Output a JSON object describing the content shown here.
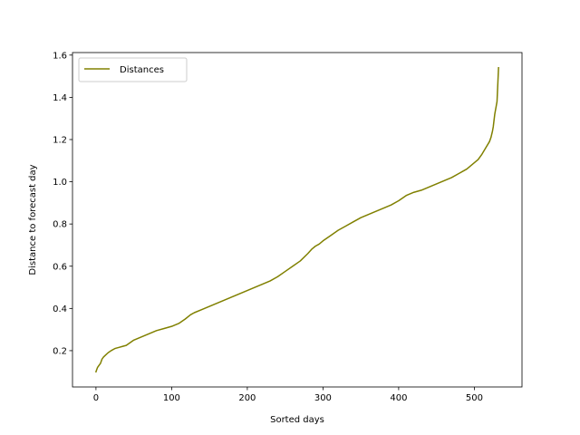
{
  "chart_data": {
    "type": "line",
    "xlabel": "Sorted days",
    "ylabel": "Distance to forecast day",
    "xlim": [
      -31,
      563
    ],
    "ylim": [
      0.028,
      1.612
    ],
    "xticks": [
      0,
      100,
      200,
      300,
      400,
      500
    ],
    "yticks": [
      0.2,
      0.4,
      0.6,
      0.8,
      1.0,
      1.2,
      1.4,
      1.6
    ],
    "ytick_labels": [
      "0.2",
      "0.4",
      "0.6",
      "0.8",
      "1.0",
      "1.2",
      "1.4",
      "1.6"
    ],
    "grid": false,
    "legend": {
      "position": "top-left",
      "entries": [
        "Distances"
      ]
    },
    "series": [
      {
        "name": "Distances",
        "color": "#808000",
        "x": [
          0,
          1,
          2,
          4,
          6,
          8,
          10,
          13,
          16,
          20,
          25,
          30,
          35,
          40,
          50,
          60,
          70,
          80,
          90,
          100,
          110,
          118,
          125,
          130,
          140,
          150,
          160,
          170,
          180,
          190,
          200,
          210,
          220,
          230,
          240,
          250,
          260,
          270,
          280,
          285,
          290,
          295,
          300,
          310,
          320,
          330,
          340,
          350,
          360,
          370,
          380,
          390,
          400,
          410,
          420,
          430,
          440,
          450,
          460,
          470,
          480,
          490,
          500,
          505,
          510,
          515,
          520,
          522,
          524,
          525,
          526,
          527,
          528,
          529,
          530,
          531,
          532
        ],
        "y": [
          0.1,
          0.11,
          0.12,
          0.13,
          0.14,
          0.16,
          0.17,
          0.18,
          0.19,
          0.2,
          0.21,
          0.215,
          0.22,
          0.225,
          0.25,
          0.265,
          0.28,
          0.295,
          0.305,
          0.315,
          0.33,
          0.35,
          0.37,
          0.38,
          0.395,
          0.41,
          0.425,
          0.44,
          0.455,
          0.47,
          0.485,
          0.5,
          0.515,
          0.53,
          0.55,
          0.575,
          0.6,
          0.625,
          0.66,
          0.68,
          0.695,
          0.705,
          0.72,
          0.745,
          0.77,
          0.79,
          0.81,
          0.83,
          0.845,
          0.86,
          0.875,
          0.89,
          0.91,
          0.935,
          0.95,
          0.96,
          0.975,
          0.99,
          1.005,
          1.02,
          1.04,
          1.06,
          1.09,
          1.105,
          1.13,
          1.16,
          1.19,
          1.21,
          1.24,
          1.26,
          1.29,
          1.32,
          1.34,
          1.36,
          1.38,
          1.46,
          1.54
        ]
      }
    ]
  }
}
